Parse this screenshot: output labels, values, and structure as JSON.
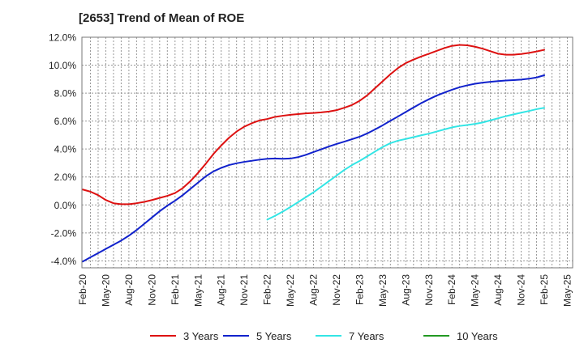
{
  "chart_data": {
    "type": "line",
    "title": "[2653]  Trend of Mean of ROE",
    "xlabel": "",
    "ylabel": "",
    "x_ticks": [
      "Feb-20",
      "May-20",
      "Aug-20",
      "Nov-20",
      "Feb-21",
      "May-21",
      "Aug-21",
      "Nov-21",
      "Feb-22",
      "May-22",
      "Aug-22",
      "Nov-22",
      "Feb-23",
      "May-23",
      "Aug-23",
      "Nov-23",
      "Feb-24",
      "May-24",
      "Aug-24",
      "Nov-24",
      "Feb-25",
      "May-25"
    ],
    "y_ticks": [
      "12.0%",
      "10.0%",
      "8.0%",
      "6.0%",
      "4.0%",
      "2.0%",
      "0.0%",
      "-2.0%",
      "-4.0%"
    ],
    "ylim": [
      -4.5,
      12.0
    ],
    "grid": true,
    "legend_position": "bottom",
    "series": [
      {
        "name": "3 Years",
        "color": "#dd1111",
        "points": [
          [
            "Feb-20",
            1.1
          ],
          [
            "Mar-20",
            0.95
          ],
          [
            "Apr-20",
            0.7
          ],
          [
            "May-20",
            0.35
          ],
          [
            "Jun-20",
            0.12
          ],
          [
            "Jul-20",
            0.05
          ],
          [
            "Aug-20",
            0.05
          ],
          [
            "Sep-20",
            0.12
          ],
          [
            "Oct-20",
            0.22
          ],
          [
            "Nov-20",
            0.35
          ],
          [
            "Dec-20",
            0.5
          ],
          [
            "Jan-21",
            0.65
          ],
          [
            "Feb-21",
            0.85
          ],
          [
            "Mar-21",
            1.2
          ],
          [
            "Apr-21",
            1.7
          ],
          [
            "May-21",
            2.3
          ],
          [
            "Jun-21",
            2.95
          ],
          [
            "Jul-21",
            3.65
          ],
          [
            "Aug-21",
            4.25
          ],
          [
            "Sep-21",
            4.8
          ],
          [
            "Oct-21",
            5.25
          ],
          [
            "Nov-21",
            5.6
          ],
          [
            "Dec-21",
            5.85
          ],
          [
            "Jan-22",
            6.05
          ],
          [
            "Feb-22",
            6.15
          ],
          [
            "Mar-22",
            6.3
          ],
          [
            "Apr-22",
            6.38
          ],
          [
            "May-22",
            6.45
          ],
          [
            "Jun-22",
            6.5
          ],
          [
            "Jul-22",
            6.55
          ],
          [
            "Aug-22",
            6.58
          ],
          [
            "Sep-22",
            6.62
          ],
          [
            "Oct-22",
            6.68
          ],
          [
            "Nov-22",
            6.78
          ],
          [
            "Dec-22",
            6.95
          ],
          [
            "Jan-23",
            7.15
          ],
          [
            "Feb-23",
            7.45
          ],
          [
            "Mar-23",
            7.85
          ],
          [
            "Apr-23",
            8.35
          ],
          [
            "May-23",
            8.85
          ],
          [
            "Jun-23",
            9.35
          ],
          [
            "Jul-23",
            9.8
          ],
          [
            "Aug-23",
            10.15
          ],
          [
            "Sep-23",
            10.4
          ],
          [
            "Oct-23",
            10.62
          ],
          [
            "Nov-23",
            10.82
          ],
          [
            "Dec-23",
            11.02
          ],
          [
            "Jan-24",
            11.22
          ],
          [
            "Feb-24",
            11.38
          ],
          [
            "Mar-24",
            11.45
          ],
          [
            "Apr-24",
            11.42
          ],
          [
            "May-24",
            11.32
          ],
          [
            "Jun-24",
            11.18
          ],
          [
            "Jul-24",
            11.0
          ],
          [
            "Aug-24",
            10.82
          ],
          [
            "Sep-24",
            10.75
          ],
          [
            "Oct-24",
            10.75
          ],
          [
            "Nov-24",
            10.8
          ],
          [
            "Dec-24",
            10.88
          ],
          [
            "Jan-25",
            10.98
          ],
          [
            "Feb-25",
            11.1
          ]
        ]
      },
      {
        "name": "5 Years",
        "color": "#1122cc",
        "points": [
          [
            "Feb-20",
            -4.05
          ],
          [
            "Mar-20",
            -3.75
          ],
          [
            "Apr-20",
            -3.45
          ],
          [
            "May-20",
            -3.15
          ],
          [
            "Jun-20",
            -2.85
          ],
          [
            "Jul-20",
            -2.55
          ],
          [
            "Aug-20",
            -2.2
          ],
          [
            "Sep-20",
            -1.8
          ],
          [
            "Oct-20",
            -1.35
          ],
          [
            "Nov-20",
            -0.9
          ],
          [
            "Dec-20",
            -0.45
          ],
          [
            "Jan-21",
            -0.05
          ],
          [
            "Feb-21",
            0.3
          ],
          [
            "Mar-21",
            0.7
          ],
          [
            "Apr-21",
            1.15
          ],
          [
            "May-21",
            1.6
          ],
          [
            "Jun-21",
            2.05
          ],
          [
            "Jul-21",
            2.4
          ],
          [
            "Aug-21",
            2.65
          ],
          [
            "Sep-21",
            2.85
          ],
          [
            "Oct-21",
            2.98
          ],
          [
            "Nov-21",
            3.08
          ],
          [
            "Dec-21",
            3.16
          ],
          [
            "Jan-22",
            3.24
          ],
          [
            "Feb-22",
            3.3
          ],
          [
            "Mar-22",
            3.32
          ],
          [
            "Apr-22",
            3.3
          ],
          [
            "May-22",
            3.32
          ],
          [
            "Jun-22",
            3.42
          ],
          [
            "Jul-22",
            3.58
          ],
          [
            "Aug-22",
            3.78
          ],
          [
            "Sep-22",
            3.98
          ],
          [
            "Oct-22",
            4.18
          ],
          [
            "Nov-22",
            4.36
          ],
          [
            "Dec-22",
            4.53
          ],
          [
            "Jan-23",
            4.7
          ],
          [
            "Feb-23",
            4.88
          ],
          [
            "Mar-23",
            5.12
          ],
          [
            "Apr-23",
            5.4
          ],
          [
            "May-23",
            5.7
          ],
          [
            "Jun-23",
            6.02
          ],
          [
            "Jul-23",
            6.33
          ],
          [
            "Aug-23",
            6.65
          ],
          [
            "Sep-23",
            6.97
          ],
          [
            "Oct-23",
            7.28
          ],
          [
            "Nov-23",
            7.56
          ],
          [
            "Dec-23",
            7.82
          ],
          [
            "Jan-24",
            8.04
          ],
          [
            "Feb-24",
            8.24
          ],
          [
            "Mar-24",
            8.42
          ],
          [
            "Apr-24",
            8.56
          ],
          [
            "May-24",
            8.67
          ],
          [
            "Jun-24",
            8.75
          ],
          [
            "Jul-24",
            8.81
          ],
          [
            "Aug-24",
            8.86
          ],
          [
            "Sep-24",
            8.9
          ],
          [
            "Oct-24",
            8.93
          ],
          [
            "Nov-24",
            8.97
          ],
          [
            "Dec-24",
            9.03
          ],
          [
            "Jan-25",
            9.12
          ],
          [
            "Feb-25",
            9.28
          ]
        ]
      },
      {
        "name": "7 Years",
        "color": "#33e5e5",
        "points": [
          [
            "Feb-22",
            -1.05
          ],
          [
            "Mar-22",
            -0.78
          ],
          [
            "Apr-22",
            -0.48
          ],
          [
            "May-22",
            -0.15
          ],
          [
            "Jun-22",
            0.2
          ],
          [
            "Jul-22",
            0.55
          ],
          [
            "Aug-22",
            0.9
          ],
          [
            "Sep-22",
            1.3
          ],
          [
            "Oct-22",
            1.7
          ],
          [
            "Nov-22",
            2.1
          ],
          [
            "Dec-22",
            2.5
          ],
          [
            "Jan-23",
            2.85
          ],
          [
            "Feb-23",
            3.15
          ],
          [
            "Mar-23",
            3.48
          ],
          [
            "Apr-23",
            3.82
          ],
          [
            "May-23",
            4.15
          ],
          [
            "Jun-23",
            4.42
          ],
          [
            "Jul-23",
            4.6
          ],
          [
            "Aug-23",
            4.72
          ],
          [
            "Sep-23",
            4.85
          ],
          [
            "Oct-23",
            4.98
          ],
          [
            "Nov-23",
            5.1
          ],
          [
            "Dec-23",
            5.25
          ],
          [
            "Jan-24",
            5.4
          ],
          [
            "Feb-24",
            5.55
          ],
          [
            "Mar-24",
            5.65
          ],
          [
            "Apr-24",
            5.72
          ],
          [
            "May-24",
            5.8
          ],
          [
            "Jun-24",
            5.9
          ],
          [
            "Jul-24",
            6.05
          ],
          [
            "Aug-24",
            6.2
          ],
          [
            "Sep-24",
            6.35
          ],
          [
            "Oct-24",
            6.48
          ],
          [
            "Nov-24",
            6.6
          ],
          [
            "Dec-24",
            6.72
          ],
          [
            "Jan-25",
            6.85
          ],
          [
            "Feb-25",
            6.95
          ]
        ]
      },
      {
        "name": "10 Years",
        "color": "#229922",
        "points": []
      }
    ]
  }
}
